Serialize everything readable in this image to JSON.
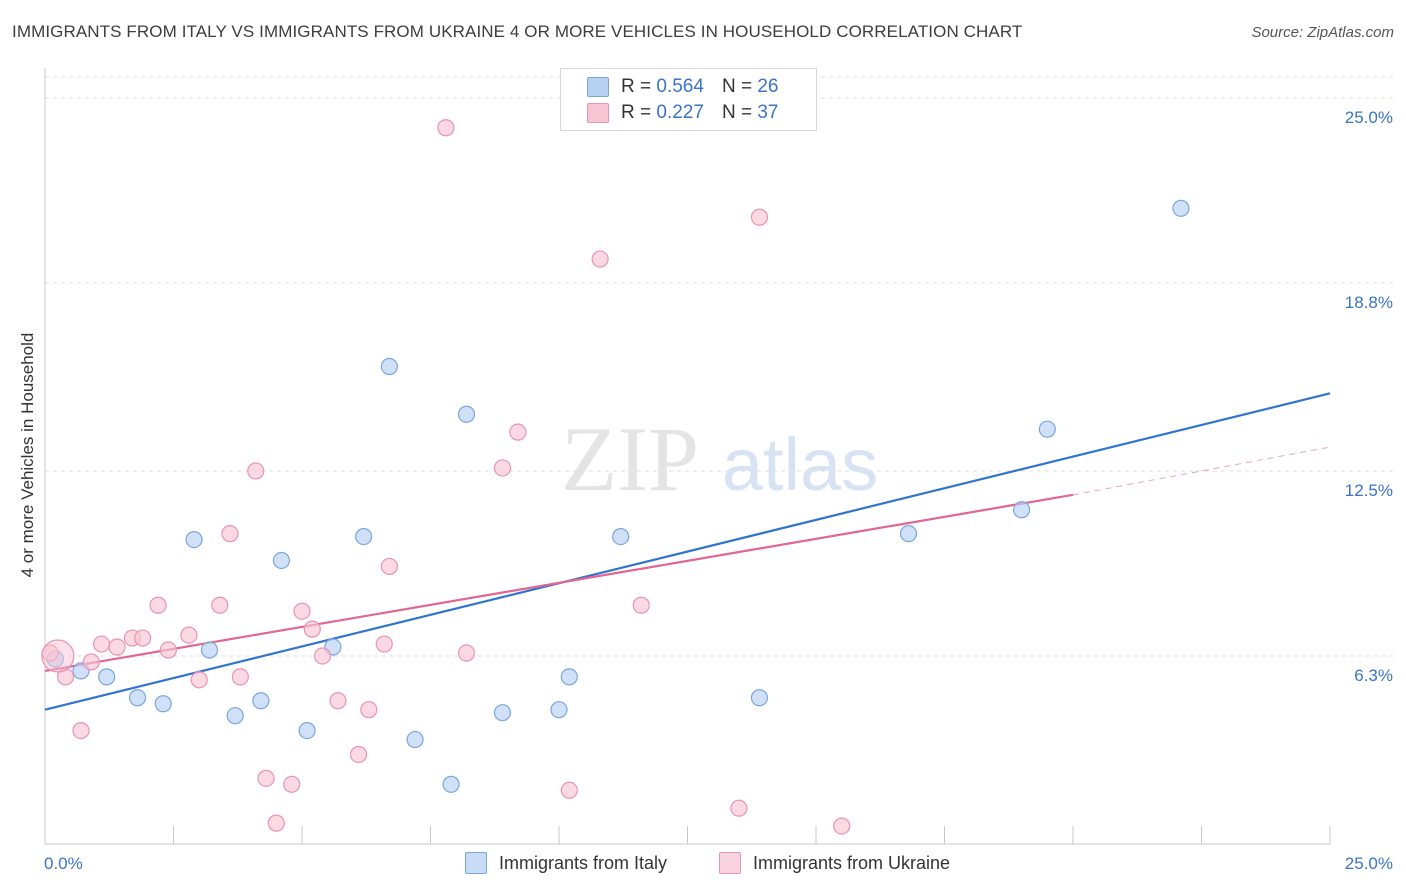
{
  "header": {
    "title": "IMMIGRANTS FROM ITALY VS IMMIGRANTS FROM UKRAINE 4 OR MORE VEHICLES IN HOUSEHOLD CORRELATION CHART",
    "source": "Source: ZipAtlas.com"
  },
  "legend": {
    "italy": {
      "r_label": "R =",
      "r_value": "0.564",
      "n_label": "N =",
      "n_value": "26"
    },
    "ukraine": {
      "r_label": "R =",
      "r_value": "0.227",
      "n_label": "N =",
      "n_value": "37"
    }
  },
  "bottom_legend": {
    "italy": "Immigrants from Italy",
    "ukraine": "Immigrants from Ukraine"
  },
  "watermark": {
    "zip": "ZIP",
    "atlas": "atlas"
  },
  "colors": {
    "italy_fill": "#b7d1f2",
    "italy_stroke": "#7aa6de",
    "italy_line": "#2f74cf",
    "ukraine_fill": "#f7c4d4",
    "ukraine_stroke": "#e993b1",
    "ukraine_line": "#e26592",
    "tick_label": "#3a73c9",
    "grid": "#dddddd"
  },
  "chart_data": {
    "type": "scatter",
    "title": "IMMIGRANTS FROM ITALY VS IMMIGRANTS FROM UKRAINE 4 OR MORE VEHICLES IN HOUSEHOLD CORRELATION CHART",
    "xlabel": "",
    "ylabel": "4 or more Vehicles in Household",
    "xlim": [
      0,
      25
    ],
    "ylim": [
      0,
      25.7
    ],
    "x_tick_labels": [
      "0.0%",
      "25.0%"
    ],
    "y_ticks": [
      6.3,
      12.5,
      18.8,
      25.0
    ],
    "y_tick_labels": [
      "6.3%",
      "12.5%",
      "18.8%",
      "25.0%"
    ],
    "grid": true,
    "series": [
      {
        "name": "Immigrants from Italy",
        "points": [
          [
            0.2,
            6.2
          ],
          [
            0.7,
            5.8
          ],
          [
            1.2,
            5.6
          ],
          [
            1.8,
            4.9
          ],
          [
            2.3,
            4.7
          ],
          [
            2.9,
            10.2
          ],
          [
            3.2,
            6.5
          ],
          [
            3.7,
            4.3
          ],
          [
            4.2,
            4.8
          ],
          [
            4.6,
            9.5
          ],
          [
            5.1,
            3.8
          ],
          [
            5.6,
            6.6
          ],
          [
            6.2,
            10.3
          ],
          [
            6.7,
            16.0
          ],
          [
            7.2,
            3.5
          ],
          [
            7.9,
            2.0
          ],
          [
            8.2,
            14.4
          ],
          [
            8.9,
            4.4
          ],
          [
            10.0,
            4.5
          ],
          [
            10.2,
            5.6
          ],
          [
            11.2,
            10.3
          ],
          [
            13.9,
            4.9
          ],
          [
            16.8,
            10.4
          ],
          [
            19.0,
            11.2
          ],
          [
            19.5,
            13.9
          ],
          [
            22.1,
            21.3
          ]
        ],
        "trend": {
          "x": [
            0,
            25
          ],
          "y": [
            4.5,
            15.1
          ]
        }
      },
      {
        "name": "Immigrants from Ukraine",
        "points": [
          [
            0.1,
            6.4
          ],
          [
            0.4,
            5.6
          ],
          [
            0.7,
            3.8
          ],
          [
            0.9,
            6.1
          ],
          [
            1.1,
            6.7
          ],
          [
            1.4,
            6.6
          ],
          [
            1.7,
            6.9
          ],
          [
            1.9,
            6.9
          ],
          [
            2.2,
            8.0
          ],
          [
            2.4,
            6.5
          ],
          [
            2.8,
            7.0
          ],
          [
            3.0,
            5.5
          ],
          [
            3.4,
            8.0
          ],
          [
            3.6,
            10.4
          ],
          [
            3.8,
            5.6
          ],
          [
            4.1,
            12.5
          ],
          [
            4.3,
            2.2
          ],
          [
            4.5,
            0.7
          ],
          [
            4.8,
            2.0
          ],
          [
            5.0,
            7.8
          ],
          [
            5.2,
            7.2
          ],
          [
            5.4,
            6.3
          ],
          [
            5.7,
            4.8
          ],
          [
            6.1,
            3.0
          ],
          [
            6.3,
            4.5
          ],
          [
            6.6,
            6.7
          ],
          [
            6.7,
            9.3
          ],
          [
            7.8,
            24.0
          ],
          [
            8.2,
            6.4
          ],
          [
            8.9,
            12.6
          ],
          [
            9.2,
            13.8
          ],
          [
            10.2,
            1.8
          ],
          [
            10.8,
            19.6
          ],
          [
            11.6,
            8.0
          ],
          [
            13.5,
            1.2
          ],
          [
            13.9,
            21.0
          ],
          [
            15.5,
            0.6
          ]
        ],
        "trend": {
          "x": [
            0,
            20
          ],
          "y": [
            5.8,
            11.7
          ]
        },
        "trend_extension": {
          "x": [
            20,
            25
          ],
          "y": [
            11.7,
            13.3
          ]
        }
      }
    ]
  }
}
